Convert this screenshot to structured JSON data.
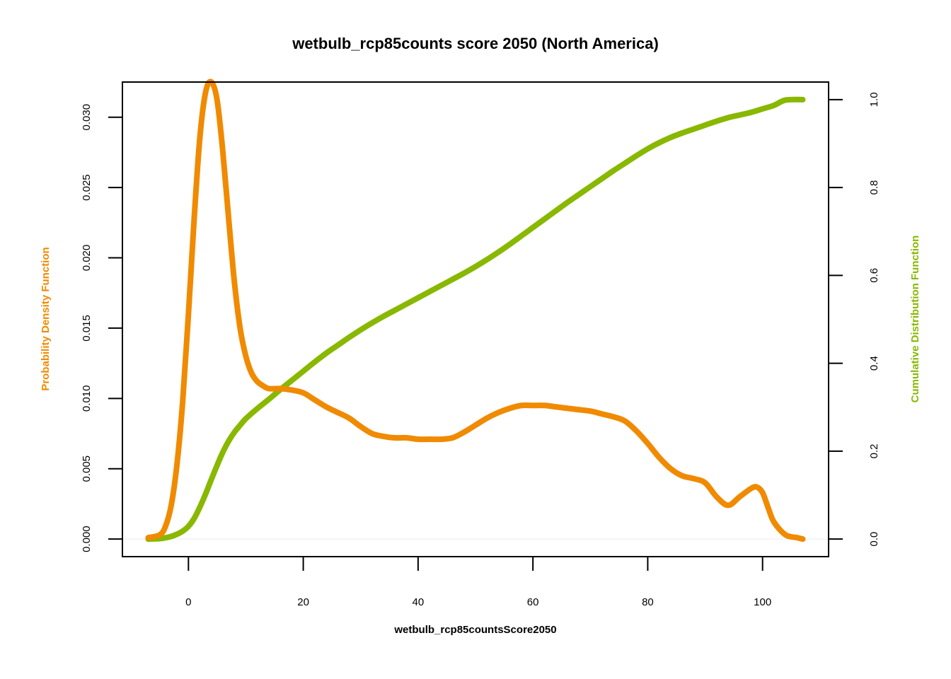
{
  "chart_data": {
    "type": "line",
    "title": "wetbulb_rcp85counts score 2050 (North America)",
    "xlabel": "wetbulb_rcp85countsScore2050",
    "ylabel_left": "Probability Density Function",
    "ylabel_right": "Cumulative Distribution Function",
    "xlim": [
      -11.5,
      111.5
    ],
    "ylim_left": [
      -0.00125,
      0.0325
    ],
    "ylim_right": [
      -0.04,
      1.04
    ],
    "x_ticks": [
      0,
      20,
      40,
      60,
      80,
      100
    ],
    "x_tick_labels": [
      "0",
      "20",
      "40",
      "60",
      "80",
      "100"
    ],
    "y_left_ticks": [
      0.0,
      0.005,
      0.01,
      0.015,
      0.02,
      0.025,
      0.03
    ],
    "y_left_tick_labels": [
      "0.000",
      "0.005",
      "0.010",
      "0.015",
      "0.020",
      "0.025",
      "0.030"
    ],
    "y_right_ticks": [
      0.0,
      0.2,
      0.4,
      0.6,
      0.8,
      1.0
    ],
    "y_right_tick_labels": [
      "0.0",
      "0.2",
      "0.4",
      "0.6",
      "0.8",
      "1.0"
    ],
    "grid": false,
    "colors": {
      "pdf": "#f08a00",
      "cdf": "#88b800",
      "zero_line": "#eeeeee"
    },
    "series": [
      {
        "axis": "left",
        "x": [
          -7,
          -5,
          -4,
          -3,
          -2,
          -1,
          0,
          1,
          2,
          3,
          4,
          5,
          6,
          7,
          8,
          9,
          10,
          11,
          12,
          13,
          14,
          16,
          18,
          20,
          22,
          24,
          26,
          28,
          30,
          32,
          34,
          36,
          38,
          40,
          42,
          44,
          46,
          48,
          50,
          52,
          54,
          56,
          58,
          60,
          62,
          64,
          66,
          68,
          70,
          72,
          74,
          76,
          78,
          80,
          82,
          84,
          86,
          88,
          90,
          92,
          94,
          96,
          98,
          99,
          100,
          101,
          102,
          104,
          106,
          107
        ],
        "values": [
          0.0001,
          0.0003,
          0.0009,
          0.0024,
          0.0053,
          0.0098,
          0.016,
          0.0228,
          0.0286,
          0.0318,
          0.0325,
          0.0312,
          0.0275,
          0.0228,
          0.0183,
          0.015,
          0.013,
          0.0118,
          0.0112,
          0.0109,
          0.0107,
          0.0107,
          0.0106,
          0.0104,
          0.0099,
          0.0094,
          0.009,
          0.0086,
          0.008,
          0.0075,
          0.0073,
          0.0072,
          0.0072,
          0.0071,
          0.0071,
          0.0071,
          0.0072,
          0.0076,
          0.0081,
          0.0086,
          0.009,
          0.0093,
          0.0095,
          0.0095,
          0.0095,
          0.0094,
          0.0093,
          0.0092,
          0.0091,
          0.0089,
          0.0087,
          0.0084,
          0.0077,
          0.0068,
          0.0058,
          0.005,
          0.0045,
          0.0043,
          0.004,
          0.003,
          0.0024,
          0.003,
          0.0036,
          0.0037,
          0.0033,
          0.0022,
          0.0012,
          0.0003,
          0.0001,
          0.0
        ]
      },
      {
        "axis": "right",
        "x": [
          -7,
          -5,
          -4,
          -3,
          -2,
          -1,
          0,
          1,
          2,
          3,
          4,
          5,
          6,
          7,
          8,
          9,
          10,
          12,
          14,
          16,
          18,
          20,
          22,
          24,
          26,
          28,
          30,
          32,
          34,
          36,
          38,
          40,
          42,
          44,
          46,
          48,
          50,
          52,
          54,
          56,
          58,
          60,
          62,
          64,
          66,
          68,
          70,
          72,
          74,
          76,
          78,
          80,
          82,
          84,
          86,
          88,
          90,
          92,
          94,
          96,
          98,
          100,
          102,
          104,
          107
        ],
        "values": [
          0.0,
          0.001,
          0.003,
          0.006,
          0.011,
          0.018,
          0.029,
          0.047,
          0.073,
          0.103,
          0.136,
          0.168,
          0.198,
          0.223,
          0.243,
          0.259,
          0.274,
          0.297,
          0.318,
          0.34,
          0.361,
          0.382,
          0.403,
          0.423,
          0.441,
          0.459,
          0.476,
          0.492,
          0.507,
          0.521,
          0.535,
          0.549,
          0.563,
          0.577,
          0.591,
          0.605,
          0.62,
          0.636,
          0.653,
          0.671,
          0.69,
          0.709,
          0.728,
          0.747,
          0.766,
          0.784,
          0.802,
          0.82,
          0.838,
          0.855,
          0.872,
          0.888,
          0.902,
          0.914,
          0.924,
          0.933,
          0.942,
          0.951,
          0.959,
          0.965,
          0.971,
          0.979,
          0.987,
          0.999,
          1.0
        ]
      }
    ]
  }
}
